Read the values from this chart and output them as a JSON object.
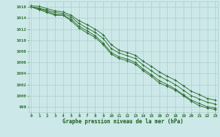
{
  "x": [
    0,
    1,
    2,
    3,
    4,
    5,
    6,
    7,
    8,
    9,
    10,
    11,
    12,
    13,
    14,
    15,
    16,
    17,
    18,
    19,
    20,
    21,
    22,
    23
  ],
  "line1": [
    1016.2,
    1016.1,
    1015.7,
    1015.3,
    1015.1,
    1014.5,
    1013.5,
    1012.8,
    1012.0,
    1011.0,
    1009.2,
    1008.2,
    1007.8,
    1007.3,
    1006.2,
    1005.3,
    1004.3,
    1003.5,
    1002.8,
    1001.8,
    1000.8,
    1000.2,
    999.5,
    999.2
  ],
  "line2": [
    1016.0,
    1015.8,
    1015.4,
    1015.0,
    1014.8,
    1014.2,
    1013.0,
    1012.2,
    1011.4,
    1010.3,
    1008.5,
    1007.7,
    1007.2,
    1006.7,
    1005.5,
    1004.5,
    1003.5,
    1002.8,
    1002.0,
    1001.0,
    1000.0,
    999.4,
    998.8,
    998.5
  ],
  "line3": [
    1016.0,
    1015.7,
    1015.2,
    1014.7,
    1014.5,
    1013.8,
    1012.5,
    1011.7,
    1010.8,
    1009.5,
    1007.8,
    1007.0,
    1006.6,
    1006.0,
    1004.8,
    1003.8,
    1002.7,
    1002.0,
    1001.2,
    1000.2,
    999.2,
    998.6,
    998.0,
    997.8
  ],
  "line4": [
    1016.0,
    1015.5,
    1015.0,
    1014.5,
    1014.5,
    1013.5,
    1012.2,
    1011.3,
    1010.5,
    1009.2,
    1007.5,
    1006.7,
    1006.3,
    1005.7,
    1004.5,
    1003.5,
    1002.3,
    1001.7,
    1001.0,
    1000.0,
    999.0,
    998.2,
    997.8,
    997.5
  ],
  "bg_color": "#cce8e8",
  "grid_color": "#aacccc",
  "line_color": "#2d6e2d",
  "xlabel": "Graphe pression niveau de la mer (hPa)",
  "xlabel_color": "#1a5c1a",
  "tick_color": "#2d6e2d",
  "ylim": [
    997,
    1017
  ],
  "yticks": [
    998,
    1000,
    1002,
    1004,
    1006,
    1008,
    1010,
    1012,
    1014,
    1016
  ],
  "xticks": [
    0,
    1,
    2,
    3,
    4,
    5,
    6,
    7,
    8,
    9,
    10,
    11,
    12,
    13,
    14,
    15,
    16,
    17,
    18,
    19,
    20,
    21,
    22,
    23
  ],
  "marker": "+"
}
